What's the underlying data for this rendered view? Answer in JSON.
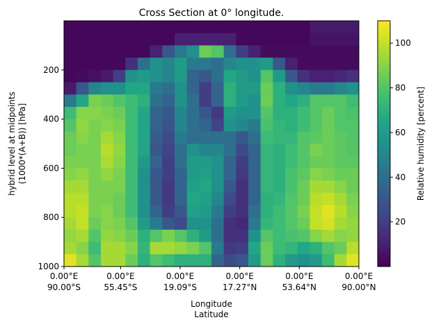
{
  "chart_data": {
    "type": "heatmap",
    "title": "Cross Section at 0° longitude.",
    "xlabel_lines": [
      "Longitude",
      "Latitude"
    ],
    "ylabel_lines": [
      "hybrid level at midpoints",
      "(1000*(A+B)) [hPa]"
    ],
    "colorbar_label": "Relative humidity [percent]",
    "colormap": "viridis",
    "clim": [
      0,
      110
    ],
    "colorbar_ticks": [
      20,
      40,
      60,
      80,
      100
    ],
    "colorbar_tick_labels": [
      "20",
      "40",
      "60",
      "80",
      "100"
    ],
    "xlim": [
      -90,
      90
    ],
    "ylim": [
      1000,
      0
    ],
    "y_inverted": true,
    "xticks": [
      -90,
      -55.45,
      -19.09,
      17.27,
      53.64,
      90
    ],
    "xtick_labels": [
      [
        "0.00°E",
        "90.00°S"
      ],
      [
        "0.00°E",
        "55.45°S"
      ],
      [
        "0.00°E",
        "19.09°S"
      ],
      [
        "0.00°E",
        "17.27°N"
      ],
      [
        "0.00°E",
        "53.64°N"
      ],
      [
        "0.00°E",
        "90.00°N"
      ]
    ],
    "yticks": [
      200,
      400,
      600,
      800,
      1000
    ],
    "ytick_labels": [
      "200",
      "400",
      "600",
      "800",
      "1000"
    ],
    "x": [
      -86.25,
      -78.75,
      -71.25,
      -63.75,
      -56.25,
      -48.75,
      -41.25,
      -33.75,
      -26.25,
      -18.75,
      -11.25,
      -3.75,
      3.75,
      11.25,
      18.75,
      26.25,
      33.75,
      41.25,
      48.75,
      56.25,
      63.75,
      71.25,
      78.75,
      86.25
    ],
    "y": [
      25,
      75,
      125,
      175,
      225,
      275,
      325,
      375,
      425,
      475,
      525,
      575,
      625,
      675,
      725,
      775,
      825,
      875,
      925,
      975
    ],
    "z": [
      [
        2,
        2,
        2,
        2,
        2,
        2,
        2,
        2,
        2,
        2,
        2,
        2,
        2,
        2,
        2,
        2,
        2,
        2,
        2,
        2,
        8,
        8,
        8,
        8
      ],
      [
        2,
        2,
        2,
        2,
        2,
        2,
        2,
        2,
        2,
        10,
        10,
        10,
        10,
        10,
        2,
        2,
        2,
        2,
        2,
        2,
        6,
        6,
        6,
        6
      ],
      [
        2,
        2,
        2,
        2,
        2,
        2,
        2,
        10,
        30,
        45,
        55,
        85,
        80,
        40,
        20,
        10,
        3,
        3,
        3,
        3,
        3,
        3,
        3,
        3
      ],
      [
        2,
        2,
        2,
        2,
        2,
        15,
        40,
        55,
        50,
        60,
        45,
        45,
        40,
        50,
        55,
        55,
        60,
        30,
        10,
        3,
        3,
        3,
        3,
        3
      ],
      [
        2,
        3,
        5,
        8,
        20,
        55,
        60,
        55,
        50,
        60,
        35,
        30,
        40,
        65,
        60,
        55,
        80,
        60,
        30,
        15,
        10,
        10,
        12,
        15
      ],
      [
        8,
        30,
        50,
        55,
        55,
        65,
        65,
        45,
        40,
        55,
        35,
        20,
        35,
        70,
        60,
        60,
        85,
        70,
        55,
        50,
        45,
        45,
        50,
        55
      ],
      [
        45,
        65,
        88,
        85,
        80,
        75,
        70,
        40,
        35,
        55,
        40,
        20,
        35,
        70,
        60,
        55,
        85,
        70,
        65,
        70,
        80,
        80,
        80,
        75
      ],
      [
        75,
        90,
        90,
        88,
        85,
        75,
        65,
        35,
        30,
        50,
        40,
        30,
        18,
        60,
        55,
        55,
        80,
        70,
        70,
        75,
        80,
        85,
        80,
        78
      ],
      [
        80,
        92,
        88,
        90,
        88,
        75,
        65,
        35,
        28,
        50,
        40,
        35,
        22,
        55,
        50,
        45,
        78,
        72,
        70,
        75,
        80,
        85,
        80,
        80
      ],
      [
        85,
        90,
        88,
        95,
        90,
        75,
        65,
        32,
        25,
        45,
        40,
        40,
        40,
        40,
        30,
        40,
        75,
        72,
        72,
        80,
        82,
        85,
        82,
        80
      ],
      [
        85,
        88,
        88,
        98,
        92,
        75,
        65,
        30,
        22,
        40,
        55,
        50,
        50,
        40,
        25,
        35,
        72,
        70,
        75,
        80,
        88,
        85,
        82,
        80
      ],
      [
        88,
        88,
        88,
        96,
        90,
        75,
        60,
        35,
        20,
        40,
        60,
        60,
        55,
        35,
        20,
        35,
        72,
        70,
        75,
        80,
        85,
        85,
        82,
        82
      ],
      [
        90,
        92,
        88,
        92,
        88,
        75,
        55,
        30,
        20,
        35,
        60,
        62,
        55,
        35,
        18,
        35,
        72,
        70,
        78,
        82,
        90,
        88,
        85,
        85
      ],
      [
        95,
        95,
        88,
        88,
        88,
        75,
        55,
        30,
        18,
        35,
        62,
        65,
        55,
        30,
        15,
        35,
        72,
        70,
        78,
        85,
        95,
        95,
        90,
        85
      ],
      [
        98,
        98,
        88,
        88,
        85,
        75,
        55,
        30,
        18,
        35,
        65,
        62,
        50,
        25,
        15,
        35,
        70,
        72,
        80,
        85,
        98,
        100,
        95,
        88
      ],
      [
        98,
        100,
        88,
        90,
        85,
        75,
        55,
        35,
        20,
        30,
        62,
        60,
        45,
        20,
        15,
        40,
        70,
        75,
        80,
        88,
        100,
        105,
        98,
        90
      ],
      [
        95,
        100,
        85,
        90,
        88,
        80,
        60,
        45,
        30,
        25,
        55,
        55,
        40,
        15,
        12,
        45,
        72,
        75,
        80,
        85,
        100,
        103,
        95,
        92
      ],
      [
        92,
        95,
        80,
        92,
        90,
        85,
        70,
        80,
        88,
        80,
        70,
        60,
        40,
        15,
        15,
        55,
        80,
        75,
        78,
        80,
        90,
        95,
        90,
        92
      ],
      [
        95,
        90,
        75,
        95,
        95,
        90,
        72,
        95,
        95,
        92,
        88,
        80,
        45,
        18,
        20,
        65,
        85,
        75,
        72,
        65,
        70,
        80,
        85,
        98
      ],
      [
        105,
        95,
        80,
        95,
        95,
        85,
        70,
        80,
        75,
        70,
        70,
        70,
        35,
        25,
        30,
        60,
        85,
        70,
        60,
        55,
        60,
        75,
        95,
        105
      ]
    ]
  }
}
